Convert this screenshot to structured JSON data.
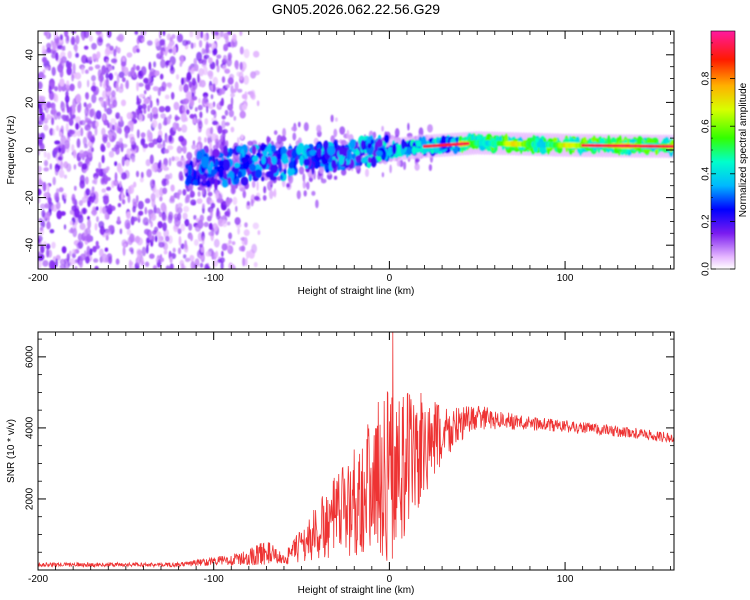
{
  "chart_data": [
    {
      "type": "heatmap",
      "title": "GN05.2026.062.22.56.G29",
      "xlabel": "Height of straight line (km)",
      "ylabel": "Frequency (Hz)",
      "xlim": [
        -200,
        162
      ],
      "ylim": [
        -50,
        50
      ],
      "xticks": [
        -200,
        -100,
        0,
        100
      ],
      "xtick_labels": [
        "-200",
        "-100",
        "0",
        "100"
      ],
      "yticks": [
        -40,
        -20,
        0,
        20,
        40
      ],
      "ytick_labels": [
        "-40",
        "-20",
        "0",
        "20",
        "40"
      ],
      "colorbar": {
        "label": "Normalized spectral amplitude",
        "range": [
          0,
          1
        ],
        "ticks": [
          0.0,
          0.2,
          0.4,
          0.6,
          0.8
        ],
        "tick_labels": [
          "0.0",
          "0.2",
          "0.4",
          "0.6",
          "0.8"
        ]
      },
      "ridge": [
        {
          "x": -115,
          "freq": -9
        },
        {
          "x": -80,
          "freq": -6
        },
        {
          "x": -40,
          "freq": -3
        },
        {
          "x": 0,
          "freq": 0
        },
        {
          "x": 20,
          "freq": 1.5
        },
        {
          "x": 50,
          "freq": 3
        },
        {
          "x": 100,
          "freq": 2
        },
        {
          "x": 162,
          "freq": 1.5
        }
      ],
      "strong_segments": [
        {
          "x_start": 20,
          "x_end": 45,
          "amplitude": 0.95
        },
        {
          "x_start": 110,
          "x_end": 162,
          "amplitude": 0.95
        }
      ],
      "noise_x_range": [
        -200,
        -95
      ]
    },
    {
      "type": "line",
      "title": "",
      "xlabel": "Height of straight line (km)",
      "ylabel": "SNR (10 * v/v)",
      "xlim": [
        -200,
        162
      ],
      "ylim": [
        0,
        6700
      ],
      "xticks": [
        -200,
        -100,
        0,
        100
      ],
      "xtick_labels": [
        "-200",
        "-100",
        "0",
        "100"
      ],
      "yticks": [
        2000,
        4000,
        6000
      ],
      "ytick_labels": [
        "2000",
        "4000",
        "6000"
      ],
      "series": [
        {
          "name": "SNR",
          "color": "#ee3333",
          "envelope": [
            {
              "x": -200,
              "mean": 150,
              "amp": 60
            },
            {
              "x": -120,
              "mean": 150,
              "amp": 60
            },
            {
              "x": -100,
              "mean": 250,
              "amp": 120
            },
            {
              "x": -85,
              "mean": 300,
              "amp": 180
            },
            {
              "x": -70,
              "mean": 500,
              "amp": 350
            },
            {
              "x": -60,
              "mean": 300,
              "amp": 150
            },
            {
              "x": -45,
              "mean": 900,
              "amp": 700
            },
            {
              "x": -30,
              "mean": 1500,
              "amp": 1200
            },
            {
              "x": -15,
              "mean": 2200,
              "amp": 1800
            },
            {
              "x": 0,
              "mean": 2800,
              "amp": 2600
            },
            {
              "x": 10,
              "mean": 3000,
              "amp": 2200
            },
            {
              "x": 25,
              "mean": 3600,
              "amp": 1200
            },
            {
              "x": 40,
              "mean": 4100,
              "amp": 500
            },
            {
              "x": 50,
              "mean": 4300,
              "amp": 350
            },
            {
              "x": 75,
              "mean": 4150,
              "amp": 200
            },
            {
              "x": 110,
              "mean": 4000,
              "amp": 180
            },
            {
              "x": 140,
              "mean": 3850,
              "amp": 150
            },
            {
              "x": 162,
              "mean": 3700,
              "amp": 150
            }
          ],
          "peak": {
            "x": 2,
            "y": 6700
          }
        }
      ]
    }
  ]
}
